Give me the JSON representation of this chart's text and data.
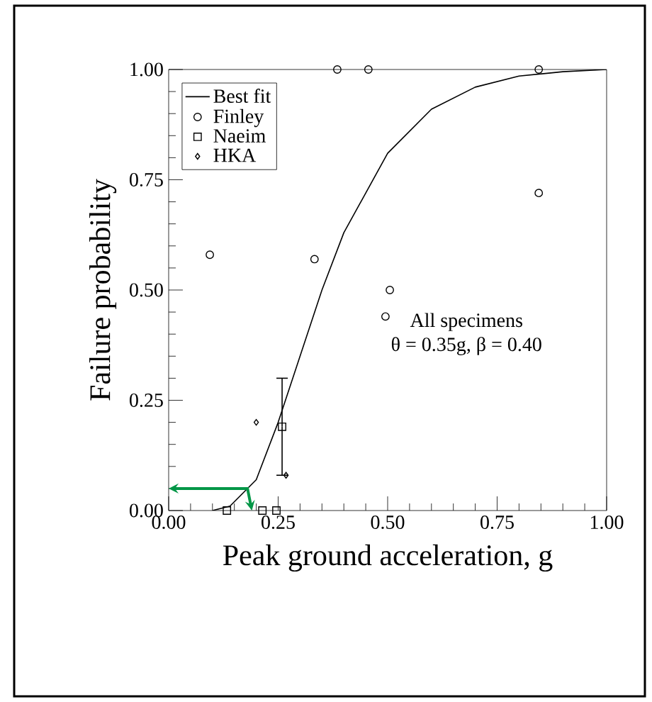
{
  "chart_data": {
    "type": "scatter",
    "xlabel": "Peak ground acceleration, g",
    "ylabel": "Failure probability",
    "xlim": [
      0,
      1
    ],
    "ylim": [
      0,
      1
    ],
    "xticks": [
      {
        "value": 0,
        "label": "0.00"
      },
      {
        "value": 0.25,
        "label": "0.25"
      },
      {
        "value": 0.5,
        "label": "0.50"
      },
      {
        "value": 0.75,
        "label": "0.75"
      },
      {
        "value": 1,
        "label": "1.00"
      }
    ],
    "yticks": [
      {
        "value": 0,
        "label": "0.00"
      },
      {
        "value": 0.25,
        "label": "0.25"
      },
      {
        "value": 0.5,
        "label": "0.50"
      },
      {
        "value": 0.75,
        "label": "0.75"
      },
      {
        "value": 1,
        "label": "1.00"
      }
    ],
    "legend": "top left",
    "grid": false,
    "annotations": [
      "All specimens",
      "θ = 0.35g, β = 0.40"
    ],
    "series": [
      {
        "name": "Best fit",
        "type": "line",
        "color": "#000000",
        "marker": "none",
        "x": [
          0.1,
          0.14,
          0.2,
          0.25,
          0.3,
          0.35,
          0.4,
          0.5,
          0.6,
          0.7,
          0.8,
          0.9,
          1.0
        ],
        "values": [
          0.0,
          0.01,
          0.07,
          0.2,
          0.35,
          0.5,
          0.63,
          0.81,
          0.91,
          0.96,
          0.985,
          0.995,
          1.0
        ]
      },
      {
        "name": "Finley",
        "type": "scatter",
        "color": "#000000",
        "marker": "circle",
        "x": [
          0.385,
          0.456,
          0.845,
          0.845,
          0.333,
          0.505,
          0.495,
          0.094
        ],
        "values": [
          1.0,
          1.0,
          1.0,
          0.72,
          0.57,
          0.5,
          0.44,
          0.58
        ]
      },
      {
        "name": "Naeim",
        "type": "scatter",
        "color": "#000000",
        "marker": "square",
        "x": [
          0.259,
          0.133,
          0.214,
          0.246
        ],
        "values": [
          0.19,
          0.0,
          0.0,
          0.0
        ],
        "errors": [
          [
            0.08,
            0.3
          ],
          null,
          null,
          null
        ]
      },
      {
        "name": "HKA",
        "type": "scatter",
        "color": "#000000",
        "marker": "diamond",
        "x": [
          0.2,
          0.268
        ],
        "values": [
          0.2,
          0.08
        ]
      }
    ]
  }
}
